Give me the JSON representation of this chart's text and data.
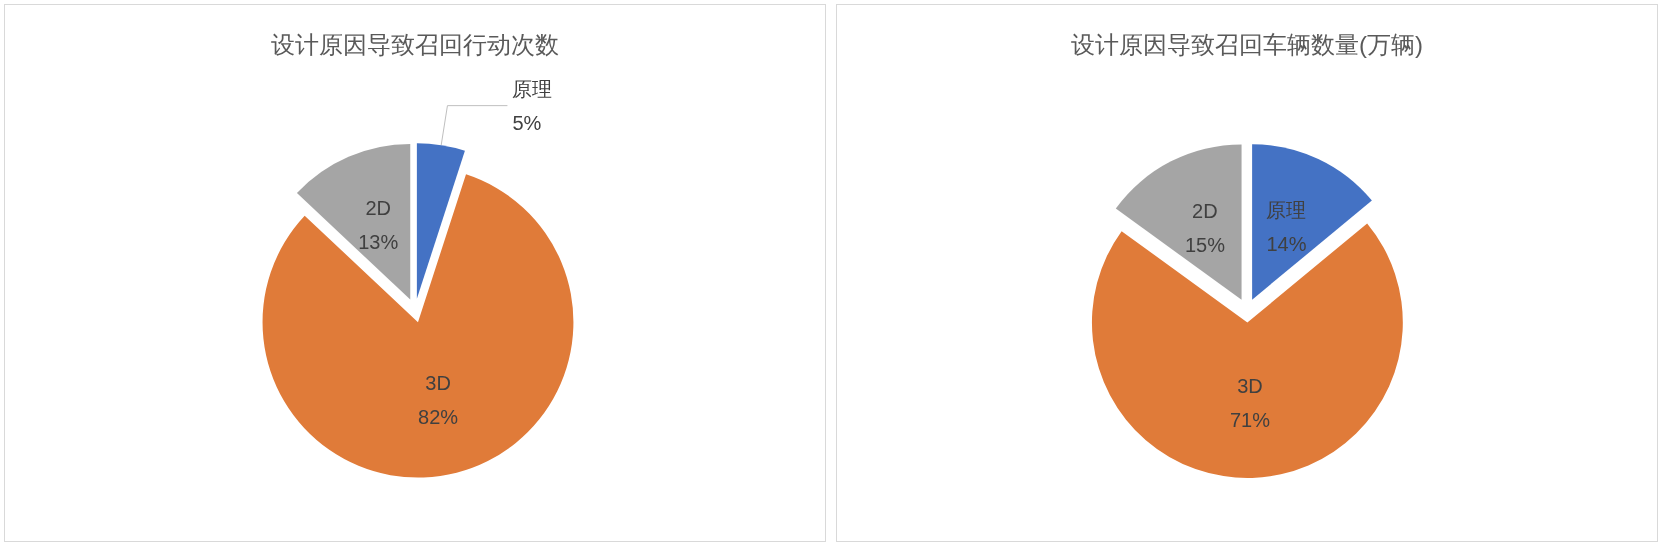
{
  "chart_data": [
    {
      "type": "pie",
      "title": "设计原因导致召回行动次数",
      "categories": [
        "原理",
        "3D",
        "2D"
      ],
      "values": [
        5,
        82,
        13
      ],
      "value_labels": [
        "5%",
        "82%",
        "13%"
      ],
      "colors": [
        "#4472c4",
        "#e07b39",
        "#a5a5a5"
      ]
    },
    {
      "type": "pie",
      "title": "设计原因导致召回车辆数量(万辆)",
      "categories": [
        "原理",
        "3D",
        "2D"
      ],
      "values": [
        14,
        71,
        15
      ],
      "value_labels": [
        "14%",
        "71%",
        "15%"
      ],
      "colors": [
        "#4472c4",
        "#e07b39",
        "#a5a5a5"
      ]
    }
  ]
}
